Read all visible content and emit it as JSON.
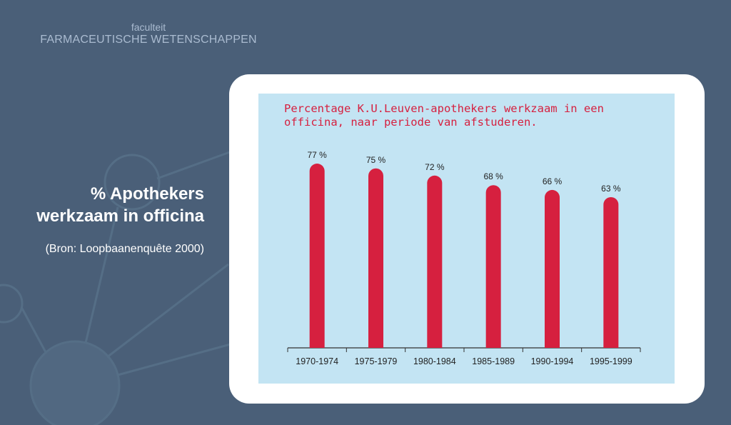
{
  "header": {
    "faculty_label": "faculteit",
    "faculty_name": "FARMACEUTISCHE WETENSCHAPPEN"
  },
  "slide": {
    "title_line1": "% Apothekers",
    "title_line2": "werkzaam in officina",
    "source": "(Bron: Loopbaanenquête 2000)"
  },
  "colors": {
    "background": "#4a5f78",
    "chart_background": "#c3e4f3",
    "bar": "#d6203f",
    "title": "#d6203f"
  },
  "chart_data": {
    "type": "bar",
    "title": "Percentage K.U.Leuven-apothekers werkzaam in een\nofficina, naar periode van afstuderen.",
    "categories": [
      "1970-1974",
      "1975-1979",
      "1980-1984",
      "1985-1989",
      "1990-1994",
      "1995-1999"
    ],
    "values": [
      77,
      75,
      72,
      68,
      66,
      63
    ],
    "value_labels": [
      "77 %",
      "75 %",
      "72 %",
      "68 %",
      "66 %",
      "63 %"
    ],
    "xlabel": "",
    "ylabel": "",
    "ylim": [
      0,
      100
    ],
    "grid": false,
    "legend": "none"
  }
}
